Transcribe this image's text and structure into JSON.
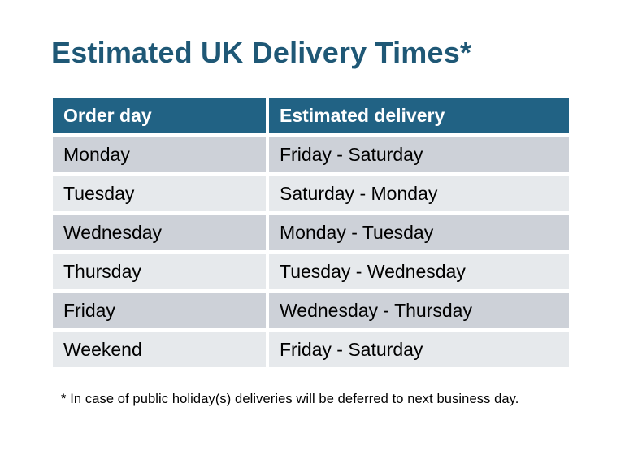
{
  "title": "Estimated UK Delivery Times*",
  "table": {
    "headers": [
      "Order day",
      "Estimated delivery"
    ],
    "rows": [
      {
        "order_day": "Monday",
        "estimated_delivery": "Friday - Saturday"
      },
      {
        "order_day": "Tuesday",
        "estimated_delivery": "Saturday - Monday"
      },
      {
        "order_day": "Wednesday",
        "estimated_delivery": "Monday - Tuesday"
      },
      {
        "order_day": "Thursday",
        "estimated_delivery": "Tuesday - Wednesday"
      },
      {
        "order_day": "Friday",
        "estimated_delivery": "Wednesday - Thursday"
      },
      {
        "order_day": "Weekend",
        "estimated_delivery": "Friday - Saturday"
      }
    ]
  },
  "footnote": "* In case of public holiday(s) deliveries will be deferred to next business day.",
  "colors": {
    "accent": "#216284",
    "title_text": "#1F5876",
    "row_dark": "#CDD1D8",
    "row_light": "#E6E9EC",
    "header_text": "#FFFFFF",
    "cell_text": "#000000",
    "background": "#FFFFFF"
  }
}
